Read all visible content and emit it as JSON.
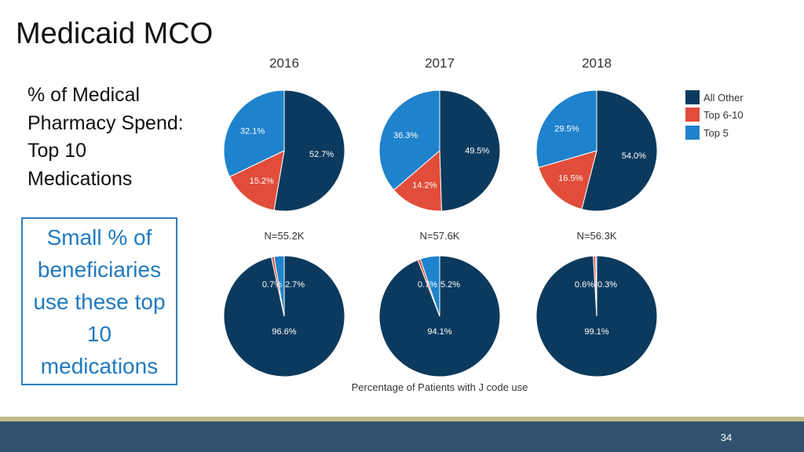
{
  "slide": {
    "title": "Medicaid MCO",
    "subtitle": "% of Medical Pharmacy Spend: Top 10 Medications",
    "callout": "Small % of beneficiaries use these top 10 medications",
    "page_number": "34"
  },
  "colors": {
    "All Other": "#0b3a5e",
    "Top 6-10": "#e14d3a",
    "Top 5": "#1f82cc",
    "accent": "#2c7fc0",
    "footer": "#30526f"
  },
  "chart_data": [
    {
      "type": "pie",
      "title": "",
      "legend": [
        "All Other",
        "Top 6-10",
        "Top 5"
      ],
      "legend_position": "right",
      "categories": [
        "2016",
        "2017",
        "2018"
      ],
      "series": [
        {
          "year": "2016",
          "values": [
            52.7,
            15.2,
            32.1
          ],
          "labels": [
            "52.7%",
            "15.2%",
            "32.1%"
          ]
        },
        {
          "year": "2017",
          "values": [
            49.5,
            14.2,
            36.3
          ],
          "labels": [
            "49.5%",
            "14.2%",
            "36.3%"
          ]
        },
        {
          "year": "2018",
          "values": [
            54.0,
            16.5,
            29.5
          ],
          "labels": [
            "54.0%",
            "16.5%",
            "29.5%"
          ]
        }
      ]
    },
    {
      "type": "pie",
      "xlabel": "Percentage of Patients with J code use",
      "series": [
        {
          "n_label": "N=55.2K",
          "values": [
            96.6,
            0.7,
            2.7
          ],
          "labels": [
            "96.6%",
            "0.7%",
            "2.7%"
          ]
        },
        {
          "n_label": "N=57.6K",
          "values": [
            94.1,
            0.7,
            5.2
          ],
          "labels": [
            "94.1%",
            "0.7%",
            "5.2%"
          ]
        },
        {
          "n_label": "N=56.3K",
          "values": [
            99.1,
            0.6,
            0.3
          ],
          "labels": [
            "99.1%",
            "0.6%",
            "0.3%"
          ]
        }
      ]
    }
  ]
}
